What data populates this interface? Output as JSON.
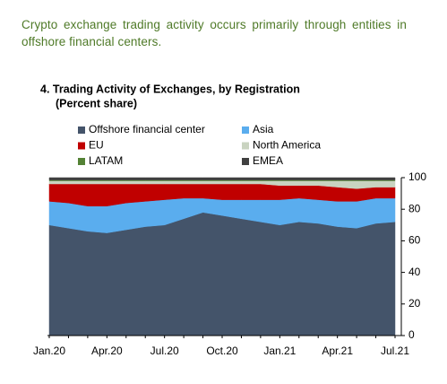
{
  "intro": "Crypto exchange trading activity occurs primarily through entities in offshore financial centers.",
  "chart_data": {
    "type": "stacked_area",
    "title": "4. Trading Activity of Exchanges, by Registration",
    "subtitle": "(Percent share)",
    "categories": [
      "Jan.20",
      null,
      null,
      "Apr.20",
      null,
      null,
      "Jul.20",
      null,
      null,
      "Oct.20",
      null,
      null,
      "Jan.21",
      null,
      null,
      "Apr.21",
      null,
      null,
      "Jul.21"
    ],
    "series": [
      {
        "name": "Offshore financial center",
        "color": "#44546a",
        "values": [
          70,
          68,
          66,
          65,
          67,
          69,
          70,
          74,
          78,
          76,
          74,
          72,
          70,
          72,
          71,
          69,
          68,
          71,
          72
        ]
      },
      {
        "name": "Asia",
        "color": "#5aadee",
        "values": [
          15,
          16,
          16,
          17,
          17,
          16,
          16,
          13,
          9,
          10,
          12,
          14,
          16,
          15,
          15,
          16,
          17,
          16,
          15
        ]
      },
      {
        "name": "EU",
        "color": "#c00000",
        "values": [
          11,
          12,
          14,
          14,
          12,
          11,
          10,
          9,
          9,
          10,
          10,
          10,
          9,
          8,
          9,
          9,
          8,
          7,
          7
        ]
      },
      {
        "name": "North America",
        "color": "#c9d3c0",
        "values": [
          2,
          2,
          2,
          2,
          2,
          2,
          2,
          2,
          2,
          2,
          2,
          2,
          3,
          3,
          3,
          4,
          5,
          4,
          4
        ]
      },
      {
        "name": "LATAM",
        "color": "#548235",
        "values": [
          0.5,
          0.5,
          0.5,
          0.5,
          0.5,
          0.5,
          0.5,
          0.5,
          0.5,
          0.5,
          0.5,
          0.5,
          0.5,
          0.5,
          0.5,
          0.5,
          0.5,
          0.5,
          0.5
        ]
      },
      {
        "name": "EMEA",
        "color": "#404040",
        "values": [
          1.5,
          1.5,
          1.5,
          1.5,
          1.5,
          1.5,
          1.5,
          1.5,
          1.5,
          1.5,
          1.5,
          1.5,
          1.5,
          1.5,
          1.5,
          1.5,
          1.5,
          1.5,
          1.5
        ]
      }
    ],
    "ylim": [
      0,
      100
    ],
    "yticks": [
      0,
      20,
      40,
      60,
      80,
      100
    ]
  }
}
